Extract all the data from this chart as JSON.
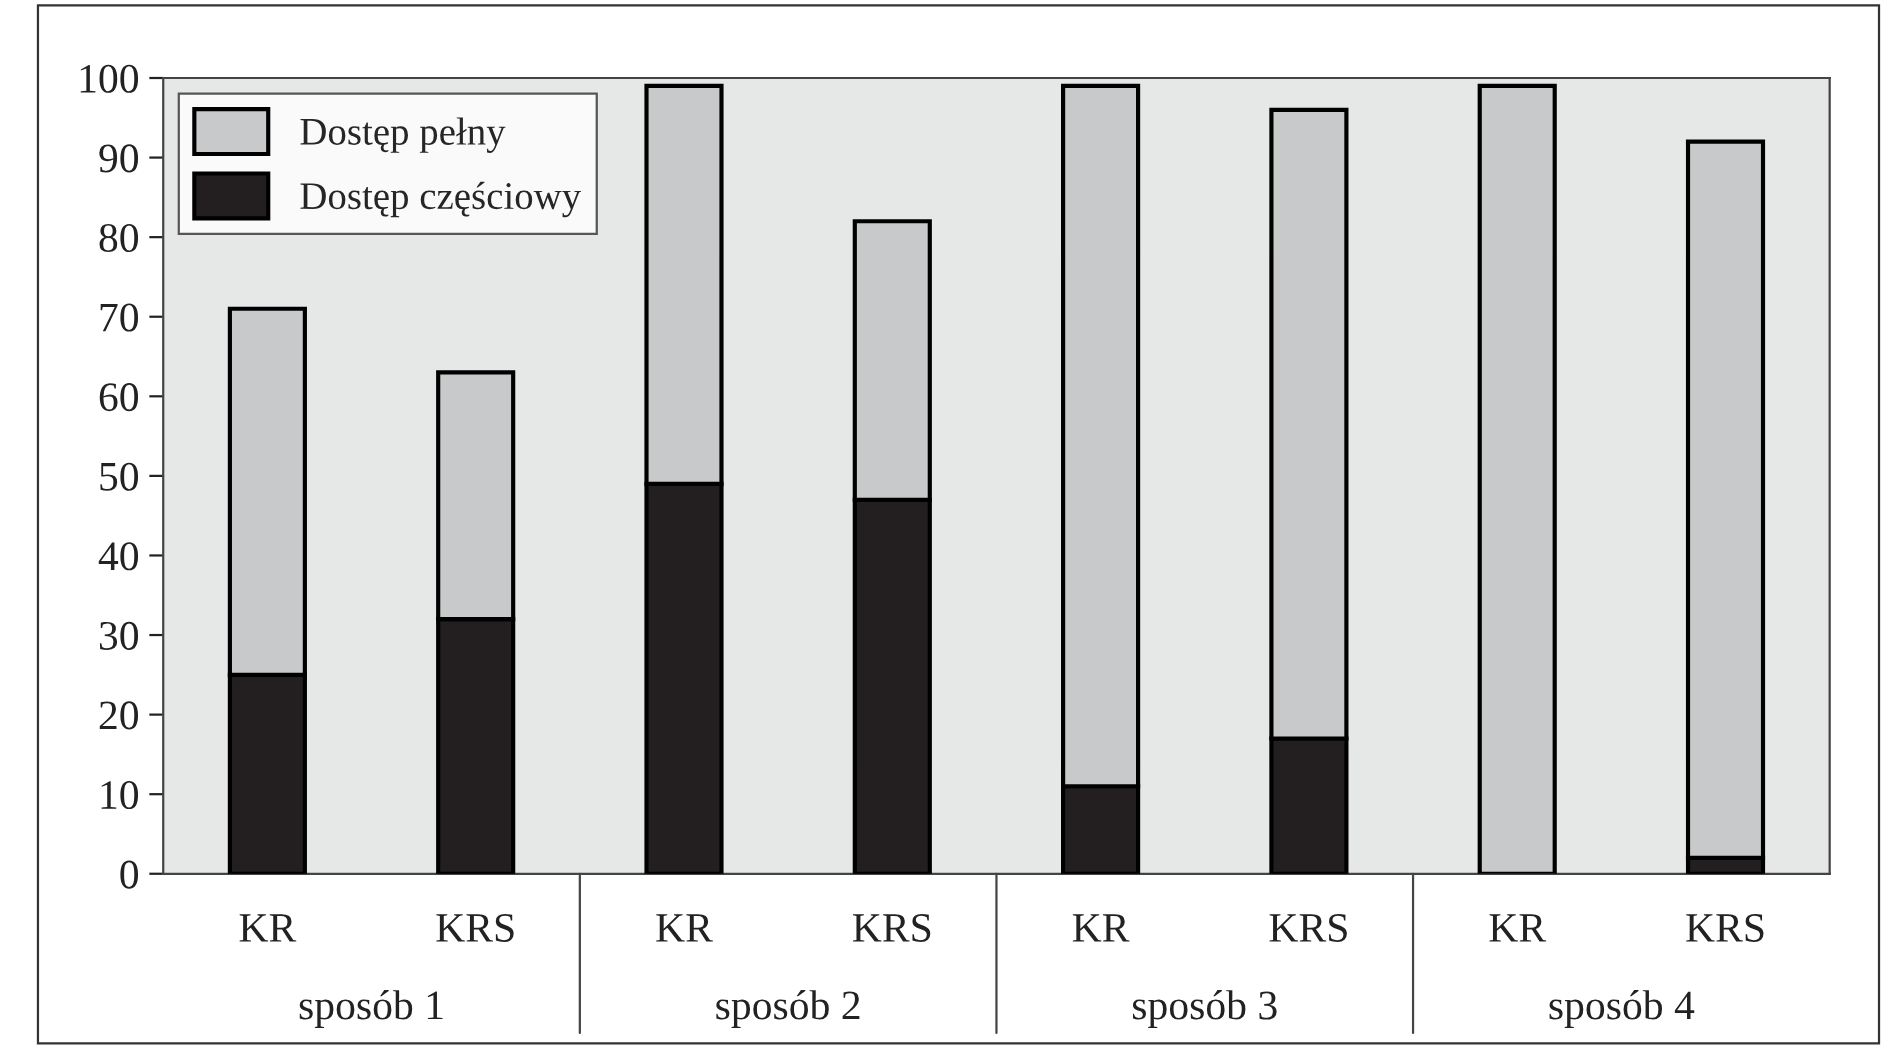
{
  "chart_data": {
    "type": "bar",
    "stacked": true,
    "categories": [
      "KR",
      "KRS",
      "KR",
      "KRS",
      "KR",
      "KRS",
      "KR",
      "KRS"
    ],
    "series": [
      {
        "name": "Dostęp częściowy",
        "color": "#231f20",
        "values": [
          25,
          32,
          49,
          47,
          11,
          17,
          0,
          2
        ]
      },
      {
        "name": "Dostęp pełny",
        "color": "#c8c9cb",
        "values": [
          46,
          31,
          50,
          35,
          88,
          79,
          99,
          90
        ]
      }
    ],
    "annotations": [
      "sposób 1",
      "sposób 2",
      "sposób 3",
      "sposób 4"
    ],
    "ylim": [
      0,
      100
    ],
    "yticks": [
      0,
      10,
      20,
      30,
      40,
      50,
      60,
      70,
      80,
      90,
      100
    ],
    "grid": false,
    "legend": "top left"
  }
}
